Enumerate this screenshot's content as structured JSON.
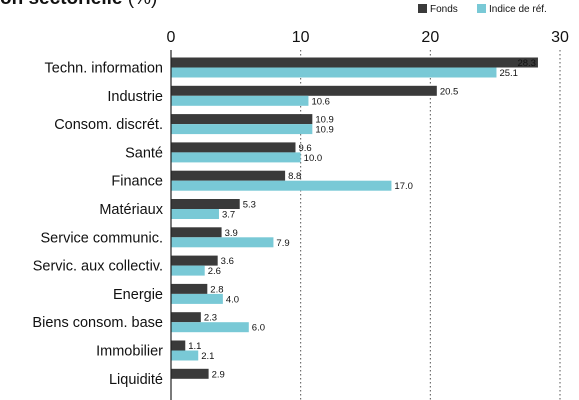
{
  "title_visible": "on sectorielle",
  "title_unit": "(%)",
  "colors": {
    "fund": "#3a3a3a",
    "benchmark": "#79c9d6",
    "axis": "#222222",
    "grid": "#555555"
  },
  "chart_data": {
    "type": "bar",
    "orientation": "horizontal",
    "title": "on sectorielle (%)",
    "categories": [
      "Techn. information",
      "Industrie",
      "Consom. discrét.",
      "Santé",
      "Finance",
      "Matériaux",
      "Service communic.",
      "Servic. aux collectiv.",
      "Energie",
      "Biens consom. base",
      "Immobilier",
      "Liquidité"
    ],
    "series": [
      {
        "name": "Fonds",
        "values": [
          28.3,
          20.5,
          10.9,
          9.6,
          8.8,
          5.3,
          3.9,
          3.6,
          2.8,
          2.3,
          1.1,
          2.9
        ]
      },
      {
        "name": "Indice de réf.",
        "values": [
          25.1,
          10.6,
          10.9,
          10.0,
          17.0,
          3.7,
          7.9,
          2.6,
          4.0,
          6.0,
          2.1,
          null
        ]
      }
    ],
    "data_labels": [
      [
        "28.3",
        "20.5",
        "10.9",
        "9.6",
        "8.8",
        "5.3",
        "3.9",
        "3.6",
        "2.8",
        "2.3",
        "1.1",
        "2.9"
      ],
      [
        "25.1",
        "10.6",
        "10.9",
        "10.0",
        "17.0",
        "3.7",
        "7.9",
        "2.6",
        "4.0",
        "6.0",
        "2.1",
        ""
      ]
    ],
    "xlim": [
      0,
      30
    ],
    "xticks": [
      "0",
      "10",
      "20",
      "30"
    ],
    "xtick_values": [
      0,
      10,
      20,
      30
    ],
    "grid": true,
    "legend": "top-right",
    "xlabel": "",
    "ylabel": ""
  }
}
